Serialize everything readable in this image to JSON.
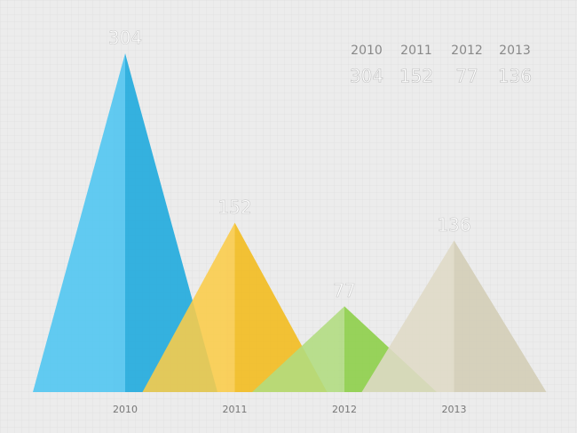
{
  "chart_data": {
    "type": "triangle",
    "categories": [
      "2010",
      "2011",
      "2012",
      "2013"
    ],
    "values": [
      304,
      152,
      77,
      136
    ],
    "colors": [
      [
        "#4dc5f1",
        "#1ba9de"
      ],
      [
        "#fbcc49",
        "#f3bc1b"
      ],
      [
        "#b0dc80",
        "#8ccf46"
      ],
      [
        "#dfdac6",
        "#d3ceb6"
      ]
    ]
  }
}
